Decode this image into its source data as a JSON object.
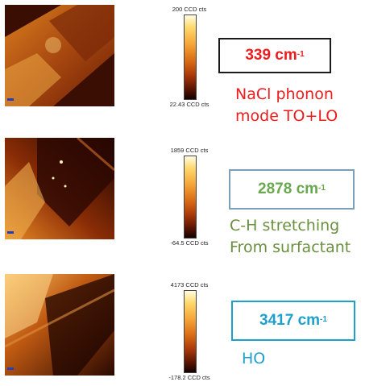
{
  "colors": {
    "red": "#ee1c1c",
    "green": "#6aa84f",
    "green_border": "#7a9fb8",
    "blue": "#1ea0cc",
    "black": "#1a1a1a"
  },
  "panels": [
    {
      "scale_top": "200 CCD cts",
      "scale_bottom": "22.43 CCD cts",
      "peak_number": "339 cm",
      "peak_exp": "-1",
      "desc_line1": "NaCl phonon",
      "desc_line2": "mode TO+LO"
    },
    {
      "scale_top": "1859 CCD cts",
      "scale_bottom": "-64.5 CCD cts",
      "peak_number": "2878 cm",
      "peak_exp": "-1",
      "desc_line1": "C-H stretching",
      "desc_line2": "From surfactant"
    },
    {
      "scale_top": "4173 CCD cts",
      "scale_bottom": "-178.2 CCD cts",
      "peak_number": "3417 cm",
      "peak_exp": "-1",
      "desc_line1": "HO",
      "desc_line2": ""
    }
  ]
}
